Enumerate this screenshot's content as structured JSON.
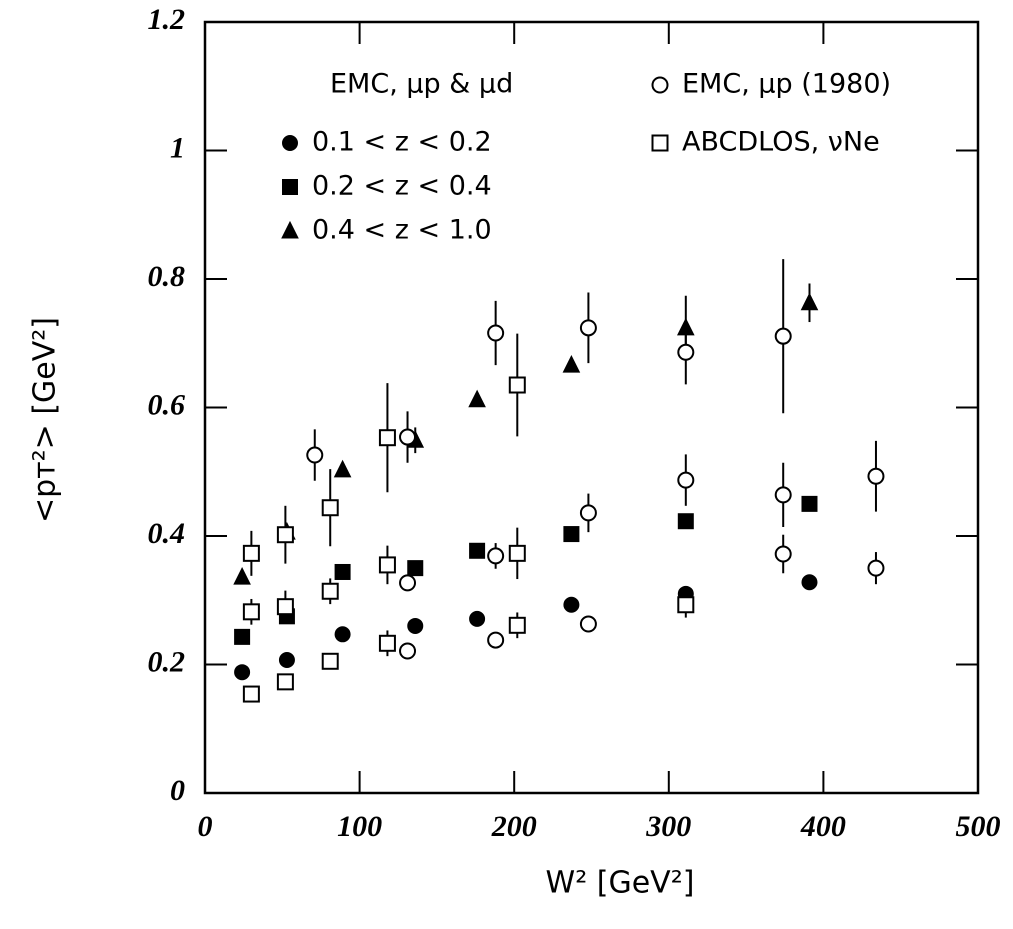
{
  "chart_data": {
    "type": "scatter",
    "x_label": "W² [GeV²]",
    "y_label": "<pᴛ²> [GeV²]",
    "xlim": [
      0,
      500
    ],
    "ylim": [
      0,
      1.2
    ],
    "xticks": [
      0,
      100,
      200,
      300,
      400,
      500
    ],
    "yticks": [
      0,
      0.2,
      0.4,
      0.6,
      0.8,
      1,
      1.2
    ],
    "legend_title": "EMC, μp & μd",
    "series": [
      {
        "name": "0.1 < z < 0.2",
        "marker": "circle",
        "filled": true,
        "color": "#000000",
        "x": [
          24,
          53,
          89,
          136,
          176,
          237,
          311,
          391
        ],
        "values": [
          0.188,
          0.207,
          0.247,
          0.26,
          0.271,
          0.293,
          0.31,
          0.328
        ],
        "errors": [
          null,
          null,
          null,
          null,
          null,
          null,
          null,
          null
        ]
      },
      {
        "name": "0.2 < z < 0.4",
        "marker": "square",
        "filled": true,
        "color": "#000000",
        "x": [
          24,
          53,
          89,
          136,
          176,
          237,
          311,
          391
        ],
        "values": [
          0.243,
          0.275,
          0.344,
          0.35,
          0.377,
          0.403,
          0.423,
          0.45
        ],
        "errors": [
          null,
          null,
          null,
          null,
          null,
          null,
          null,
          null
        ]
      },
      {
        "name": "0.4 < z < 1.0",
        "marker": "triangle",
        "filled": true,
        "color": "#000000",
        "x": [
          24,
          53,
          89,
          136,
          176,
          237,
          311,
          391
        ],
        "values": [
          0.336,
          0.406,
          0.503,
          0.549,
          0.612,
          0.666,
          0.724,
          0.763
        ],
        "errors": [
          null,
          null,
          null,
          0.02,
          null,
          null,
          0.05,
          0.03
        ]
      },
      {
        "name": "EMC, μp (1980)",
        "marker": "circle",
        "filled": false,
        "color": "#000000",
        "x": [
          71,
          131,
          131,
          131,
          188,
          188,
          188,
          248,
          248,
          248,
          311,
          311,
          374,
          374,
          374,
          434,
          434
        ],
        "values": [
          0.526,
          0.221,
          0.327,
          0.554,
          0.238,
          0.369,
          0.716,
          0.263,
          0.436,
          0.724,
          0.487,
          0.686,
          0.372,
          0.464,
          0.711,
          0.35,
          0.493
        ],
        "errors": [
          0.04,
          null,
          0.01,
          0.04,
          null,
          0.02,
          0.05,
          null,
          0.03,
          0.055,
          0.04,
          0.05,
          0.03,
          0.05,
          0.12,
          0.025,
          0.055
        ]
      },
      {
        "name": "ABCDLOS, νNe",
        "marker": "square",
        "filled": false,
        "color": "#000000",
        "x": [
          30,
          30,
          30,
          52,
          52,
          52,
          81,
          81,
          81,
          118,
          118,
          118,
          202,
          202,
          202,
          311
        ],
        "values": [
          0.154,
          0.282,
          0.373,
          0.173,
          0.29,
          0.402,
          0.205,
          0.314,
          0.444,
          0.233,
          0.355,
          0.553,
          0.261,
          0.373,
          0.635,
          0.293
        ],
        "errors": [
          null,
          0.02,
          0.035,
          null,
          0.025,
          0.045,
          null,
          0.02,
          0.06,
          0.02,
          0.03,
          0.085,
          0.02,
          0.04,
          0.08,
          0.02
        ]
      }
    ]
  }
}
